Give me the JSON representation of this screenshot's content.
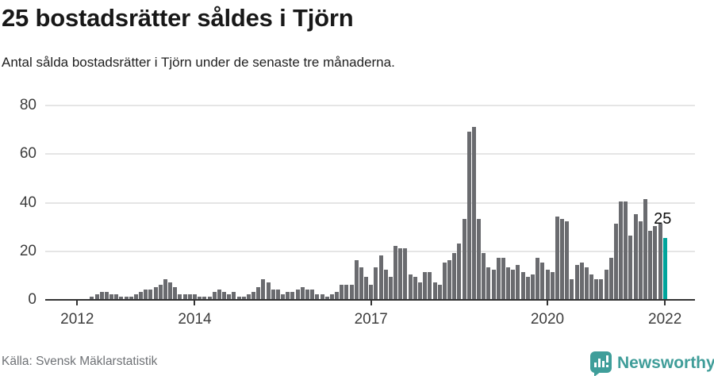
{
  "title": "25 bostadsrätter såldes i Tjörn",
  "subtitle": "Antal sålda bostadsrätter i Tjörn under de senaste tre månaderna.",
  "source": "Källa: Svensk Mäklarstatistik",
  "brand": {
    "name": "Newsworthy",
    "icon": "newsworthy-speech-bubble-chart-icon",
    "color": "#3f9e9a"
  },
  "colors": {
    "bar": "#6a6b6f",
    "highlight": "#00a49b",
    "grid": "#e5e5e5",
    "axis": "#333333",
    "tick_label": "#3d3d3d",
    "annotation": "#101010"
  },
  "chart_data": {
    "type": "bar",
    "title": "25 bostadsrätter såldes i Tjörn",
    "subtitle": "Antal sålda bostadsrätter i Tjörn under de senaste tre månaderna.",
    "frequency": "monthly",
    "start_month": "2012-04",
    "end_month": "2022-01",
    "ylim": [
      0,
      80
    ],
    "y_ticks": [
      0,
      20,
      40,
      60,
      80
    ],
    "x_ticks": [
      {
        "label": "2012"
      },
      {
        "label": "2014"
      },
      {
        "label": "2017"
      },
      {
        "label": "2020"
      },
      {
        "label": "2022"
      }
    ],
    "grid": true,
    "values": [
      1,
      2,
      3,
      3,
      2,
      2,
      1,
      1,
      1,
      2,
      3,
      4,
      4,
      5,
      6,
      8,
      7,
      5,
      2,
      2,
      2,
      2,
      1,
      1,
      1,
      3,
      4,
      3,
      2,
      3,
      1,
      1,
      2,
      3,
      5,
      8,
      7,
      4,
      4,
      2,
      3,
      3,
      4,
      5,
      4,
      4,
      2,
      2,
      1,
      2,
      3,
      6,
      6,
      6,
      16,
      13,
      9,
      6,
      13,
      18,
      12,
      9,
      22,
      21,
      21,
      10,
      9,
      7,
      11,
      11,
      7,
      6,
      15,
      16,
      19,
      23,
      33,
      69,
      71,
      33,
      19,
      13,
      12,
      17,
      17,
      13,
      12,
      14,
      11,
      9,
      10,
      17,
      15,
      12,
      11,
      34,
      33,
      32,
      8,
      14,
      15,
      13,
      10,
      8,
      8,
      12,
      17,
      31,
      40,
      40,
      26,
      35,
      32,
      41,
      28,
      30,
      31,
      25
    ],
    "highlight_last": true,
    "annotation": {
      "text": "25",
      "value": 25
    }
  }
}
